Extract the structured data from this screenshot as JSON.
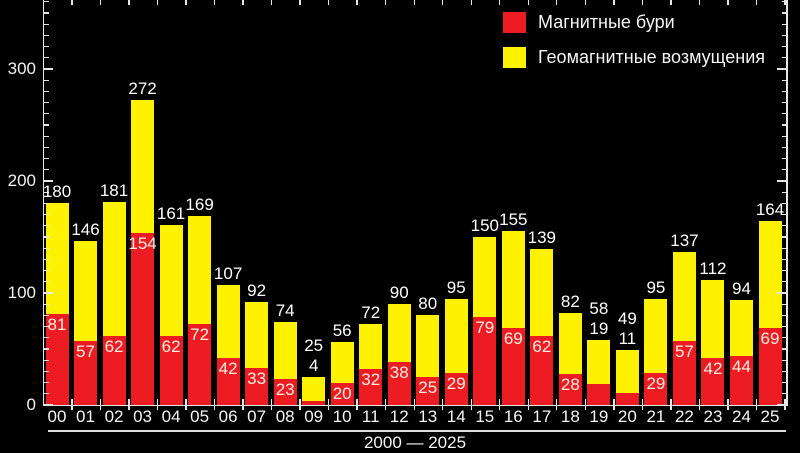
{
  "legend": {
    "items": [
      {
        "label": "Магнитные бури",
        "color": "#ed1b22"
      },
      {
        "label": "Геомагнитные возмущения",
        "color": "#fff200"
      }
    ]
  },
  "chart_data": {
    "type": "bar",
    "stacked": true,
    "title": "",
    "xlabel": "2000 — 2025",
    "ylabel": "",
    "categories": [
      "00",
      "01",
      "02",
      "03",
      "04",
      "05",
      "06",
      "07",
      "08",
      "09",
      "10",
      "11",
      "12",
      "13",
      "14",
      "15",
      "16",
      "17",
      "18",
      "19",
      "20",
      "21",
      "22",
      "23",
      "24",
      "25"
    ],
    "totals": [
      180,
      146,
      181,
      272,
      161,
      169,
      107,
      92,
      74,
      25,
      56,
      72,
      90,
      80,
      95,
      150,
      155,
      139,
      82,
      58,
      49,
      95,
      137,
      112,
      94,
      164
    ],
    "series": [
      {
        "name": "Магнитные бури",
        "color": "#ed1b22",
        "values": [
          81,
          57,
          62,
          154,
          62,
          72,
          42,
          33,
          23,
          4,
          20,
          32,
          38,
          25,
          29,
          79,
          69,
          62,
          28,
          19,
          11,
          29,
          57,
          42,
          44,
          69
        ]
      },
      {
        "name": "Геомагнитные возмущения",
        "color": "#fff200",
        "values": [
          99,
          89,
          119,
          118,
          99,
          97,
          65,
          59,
          51,
          21,
          36,
          40,
          52,
          55,
          66,
          71,
          86,
          77,
          54,
          39,
          38,
          66,
          80,
          70,
          50,
          95
        ]
      }
    ],
    "y_ticks": [
      0,
      100,
      200,
      300
    ],
    "y_minor_step": 10,
    "ylim": [
      0,
      362
    ],
    "grid": false,
    "legend_position": "top-right",
    "background": "#000000",
    "label_color_total": "#ffffff",
    "label_color_red": "#f6f0e2"
  }
}
